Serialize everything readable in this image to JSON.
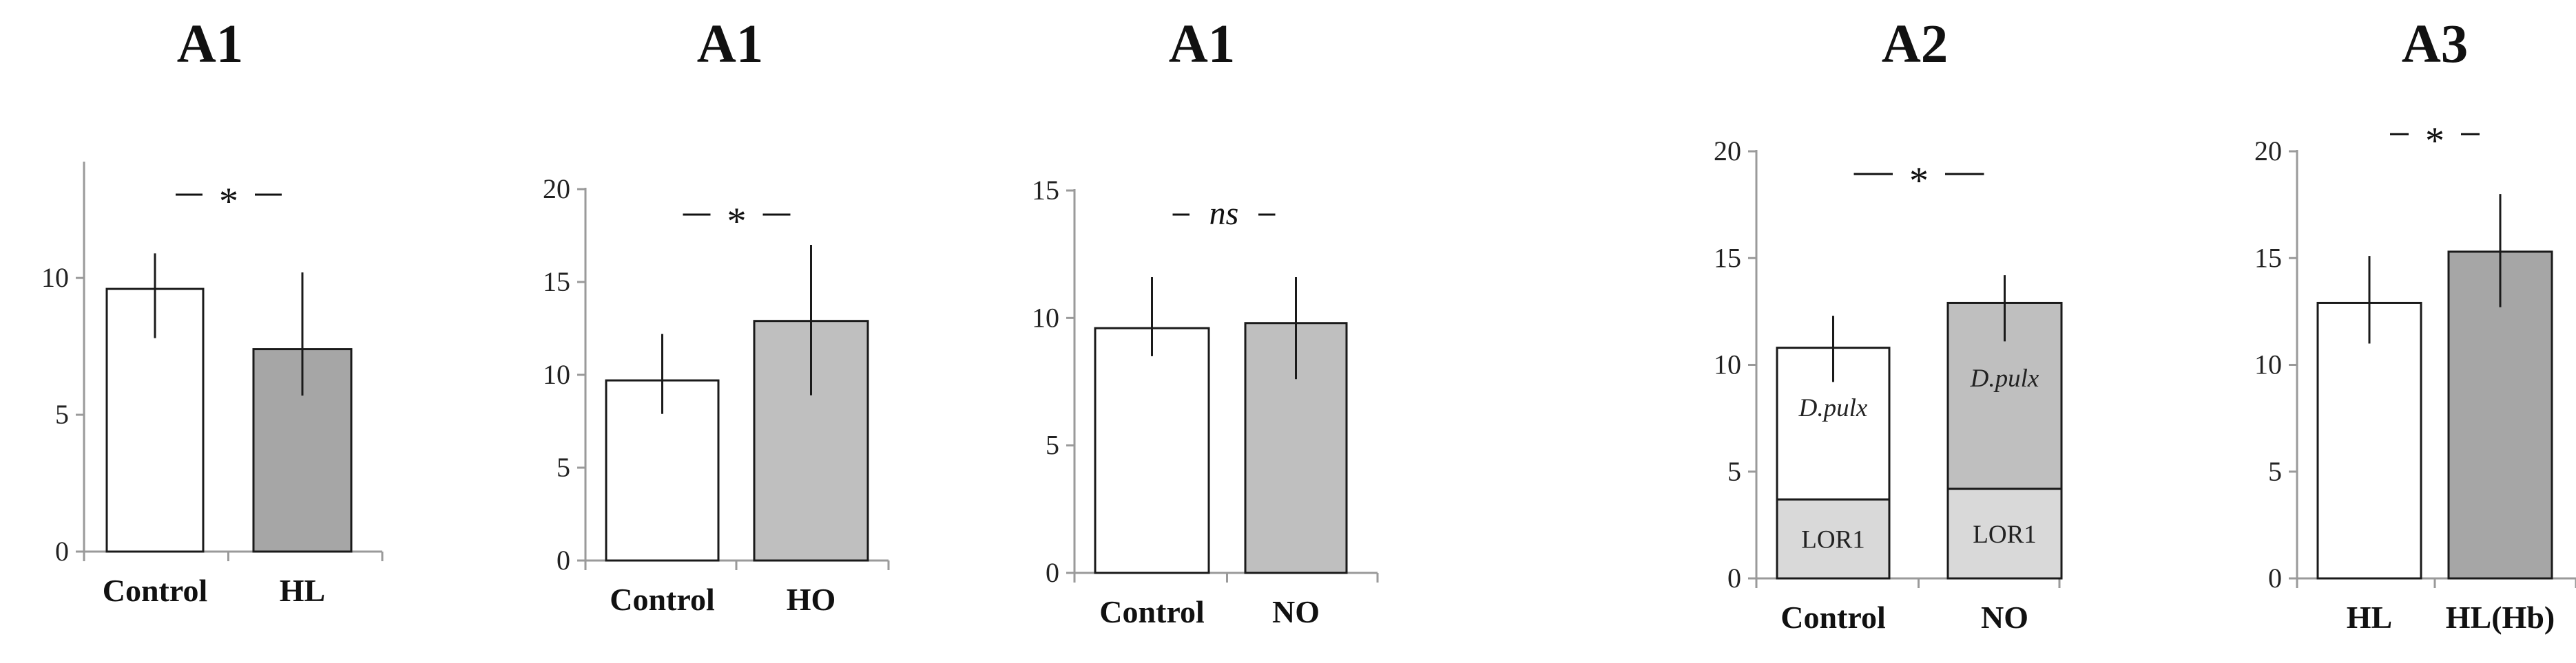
{
  "chart_data": [
    {
      "type": "bar",
      "title": "A1",
      "categories": [
        "Control",
        "HL"
      ],
      "values": [
        9.6,
        7.4
      ],
      "errors": [
        [
          7.8,
          10.9
        ],
        [
          5.7,
          10.2
        ]
      ],
      "colors": [
        "#ffffff",
        "#a6a6a6"
      ],
      "yticks": [
        "0",
        "5",
        "10"
      ],
      "ylim": [
        0,
        14
      ],
      "significance": "*"
    },
    {
      "type": "bar",
      "title": "A1",
      "categories": [
        "Control",
        "HO"
      ],
      "values": [
        9.7,
        12.9
      ],
      "errors": [
        [
          7.9,
          12.2
        ],
        [
          8.9,
          17.0
        ]
      ],
      "colors": [
        "#ffffff",
        "#bfbfbf"
      ],
      "yticks": [
        "0",
        "5",
        "10",
        "15",
        "20"
      ],
      "ylim": [
        0,
        20
      ],
      "significance": "*"
    },
    {
      "type": "bar",
      "title": "A1",
      "categories": [
        "Control",
        "NO"
      ],
      "values": [
        9.6,
        9.8
      ],
      "errors": [
        [
          8.5,
          11.6
        ],
        [
          7.6,
          11.6
        ]
      ],
      "colors": [
        "#ffffff",
        "#bfbfbf"
      ],
      "yticks": [
        "0",
        "5",
        "10",
        "15"
      ],
      "ylim": [
        0,
        15
      ],
      "significance": "ns"
    },
    {
      "type": "bar",
      "title": "A2",
      "stacked": true,
      "categories": [
        "Control",
        "NO"
      ],
      "series": [
        {
          "name": "LOR1",
          "values": [
            3.7,
            4.2
          ],
          "colors": [
            "#d9d9d9",
            "#d9d9d9"
          ]
        },
        {
          "name": "D.pulx",
          "values": [
            7.1,
            8.7
          ],
          "colors": [
            "#ffffff",
            "#bfbfbf"
          ]
        }
      ],
      "totals": [
        10.8,
        12.9
      ],
      "errors": [
        [
          9.2,
          12.3
        ],
        [
          11.1,
          14.2
        ]
      ],
      "yticks": [
        "0",
        "5",
        "10",
        "15",
        "20"
      ],
      "ylim": [
        0,
        20
      ],
      "significance": "*"
    },
    {
      "type": "bar",
      "title": "A3",
      "categories": [
        "HL",
        "HL(Hb)"
      ],
      "values": [
        12.9,
        15.3
      ],
      "errors": [
        [
          11.0,
          15.1
        ],
        [
          12.7,
          18.0
        ]
      ],
      "colors": [
        "#ffffff",
        "#a6a6a6"
      ],
      "yticks": [
        "0",
        "5",
        "10",
        "15",
        "20"
      ],
      "ylim": [
        0,
        20
      ],
      "significance": "*"
    }
  ]
}
